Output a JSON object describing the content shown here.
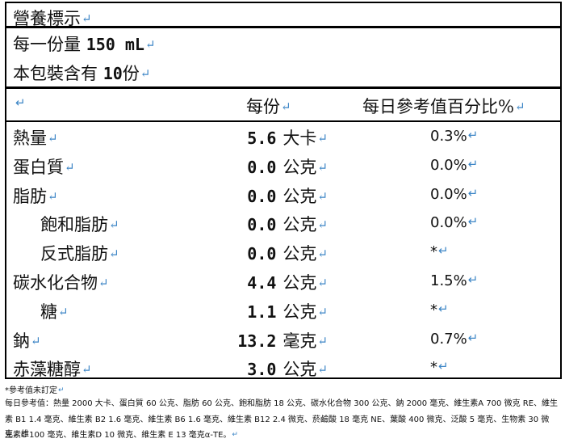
{
  "title": "營養標示",
  "serving": {
    "per_serving_prefix": "每一份量",
    "per_serving_value": "150 mL",
    "servings_prefix": "本包裝含有",
    "servings_value": "10",
    "servings_suffix": "份"
  },
  "table": {
    "header_per_serving": "每份",
    "header_daily_pct": "每日參考值百分比%",
    "rows": [
      {
        "name": "熱量",
        "value": "5.6",
        "unit": "大卡",
        "pct": "0.3%"
      },
      {
        "name": "蛋白質",
        "value": "0.0",
        "unit": "公克",
        "pct": "0.0%"
      },
      {
        "name": "脂肪",
        "value": "0.0",
        "unit": "公克",
        "pct": "0.0%"
      },
      {
        "name": "飽和脂肪",
        "value": "0.0",
        "unit": "公克",
        "pct": "0.0%"
      },
      {
        "name": "反式脂肪",
        "value": "0.0",
        "unit": "公克",
        "pct": "*"
      },
      {
        "name": "碳水化合物",
        "value": "4.4",
        "unit": "公克",
        "pct": "1.5%"
      },
      {
        "name": "糖",
        "value": "1.1",
        "unit": "公克",
        "pct": "*"
      },
      {
        "name": "鈉",
        "value": "13.2",
        "unit": "毫克",
        "pct": "0.7%"
      },
      {
        "name": "赤藻糖醇",
        "value": "3.0",
        "unit": "公克",
        "pct": "*"
      }
    ]
  },
  "footnotes": {
    "note": "*參考值未訂定",
    "daily_ref_line1": "每日參考值：熱量 2000 大卡、蛋白質 60 公克、脂肪 60 公克、飽和脂肪 18 公克、碳水化合物 300 公克、鈉 2000 毫克、維生素A  700 微克 RE、維生",
    "daily_ref_line2": "素 B1 1.4 毫克、維生素 B2 1.6 毫克、維生素 B6 1.6 毫克、維生素 B12 2.4 微克、菸鹼酸 18 毫克 NE、葉酸 400 微克、泛酸 5 毫克、生物素 30 微克、維",
    "daily_ref_line3": "生素C  100 毫克、維生素D  10 微克、維生素 E 13 毫克α-TE。"
  },
  "return_mark": "↵"
}
